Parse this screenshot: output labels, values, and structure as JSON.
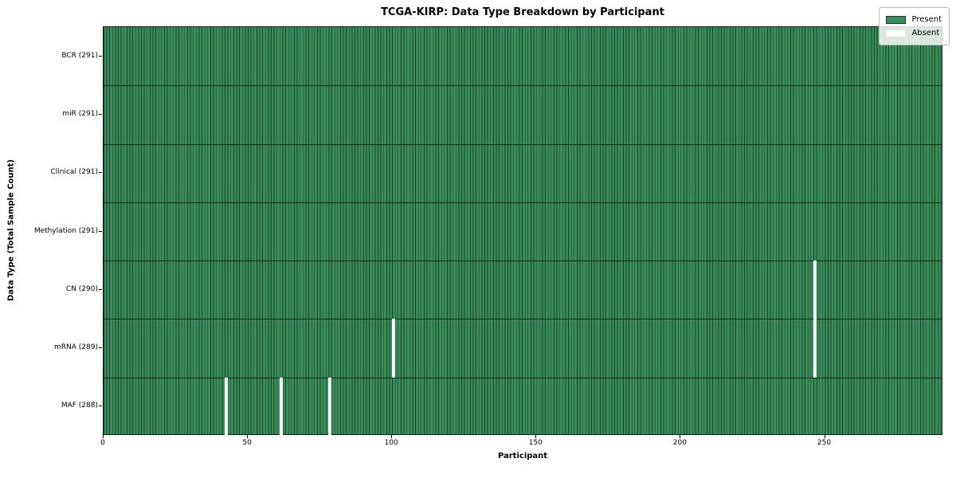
{
  "chart_data": {
    "type": "heatmap",
    "title": "TCGA-KIRP: Data Type Breakdown by Participant",
    "xlabel": "Participant",
    "ylabel": "Data Type (Total Sample Count)",
    "x_range": [
      0,
      291
    ],
    "n_participants": 291,
    "x_ticks": [
      0,
      50,
      100,
      150,
      200,
      250
    ],
    "grid": "cell-borders",
    "rows": [
      {
        "label": "BCR (291)",
        "data_type": "BCR",
        "present_count": 291,
        "absent_participants": []
      },
      {
        "label": "miR (291)",
        "data_type": "miR",
        "present_count": 291,
        "absent_participants": []
      },
      {
        "label": "Clinical (291)",
        "data_type": "Clinical",
        "present_count": 291,
        "absent_participants": []
      },
      {
        "label": "Methylation (291)",
        "data_type": "Methylation",
        "present_count": 291,
        "absent_participants": []
      },
      {
        "label": "CN (290)",
        "data_type": "CN",
        "present_count": 290,
        "absent_participants": [
          246
        ]
      },
      {
        "label": "mRNA (289)",
        "data_type": "mRNA",
        "present_count": 289,
        "absent_participants": [
          100,
          246
        ]
      },
      {
        "label": "MAF (288)",
        "data_type": "MAF",
        "present_count": 288,
        "absent_participants": [
          42,
          61,
          78
        ]
      }
    ],
    "colors": {
      "present": "#388c5a",
      "absent": "#ffffff",
      "cell_edge": "#10281a"
    },
    "legend": {
      "position": "upper right",
      "entries": [
        {
          "label": "Present",
          "color": "#388c5a"
        },
        {
          "label": "Absent",
          "color": "#ffffff"
        }
      ]
    }
  }
}
